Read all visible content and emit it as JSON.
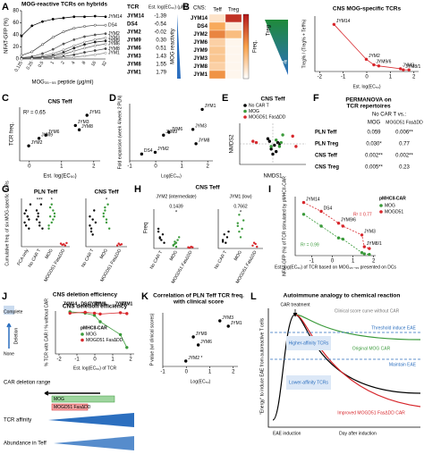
{
  "A": {
    "letter": "A",
    "title": "MOG-reactive TCRs on hybrids",
    "ylabel": "NFAT-GFP (%)",
    "xlabel": "MOG₃₅₋₅₅ peptide (μg/ml)",
    "categories": [
      "0.125",
      "0.25",
      "0.5",
      "1",
      "2",
      "4",
      "8",
      "16",
      "32"
    ],
    "ylim": [
      0,
      80
    ],
    "yticks": [
      0,
      20,
      40,
      60,
      80
    ],
    "series": [
      {
        "name": "JYM14",
        "values": [
          38,
          55,
          62,
          66,
          68,
          70,
          70,
          71,
          70
        ]
      },
      {
        "name": "DS4",
        "values": [
          6,
          12,
          24,
          36,
          45,
          51,
          54,
          56,
          56
        ]
      },
      {
        "name": "JYM2",
        "values": [
          2,
          4,
          9,
          16,
          25,
          32,
          37,
          40,
          42
        ]
      },
      {
        "name": "JYM3",
        "values": [
          1,
          2,
          5,
          9,
          15,
          22,
          28,
          32,
          35
        ]
      },
      {
        "name": "JYM9",
        "values": [
          1,
          2,
          3,
          6,
          11,
          18,
          24,
          28,
          30
        ]
      },
      {
        "name": "JYM6",
        "values": [
          0,
          1,
          2,
          4,
          8,
          13,
          18,
          22,
          25
        ]
      },
      {
        "name": "JYM8",
        "values": [
          0,
          1,
          1,
          2,
          4,
          7,
          11,
          14,
          17
        ]
      },
      {
        "name": "JYM1",
        "values": [
          0,
          0,
          1,
          1,
          2,
          3,
          5,
          7,
          10
        ]
      }
    ],
    "table": {
      "header": [
        "TCR",
        "Est. log(EC₅₀) (μM)"
      ],
      "rows": [
        [
          "JYM14",
          "-1.39"
        ],
        [
          "DS4",
          "-0.54"
        ],
        [
          "JYM2",
          "-0.02"
        ],
        [
          "JYM9",
          "0.30"
        ],
        [
          "JYM6",
          "0.51"
        ],
        [
          "JYM3",
          "1.43"
        ],
        [
          "JYM8",
          "1.55"
        ],
        [
          "JYM1",
          "1.79"
        ]
      ]
    },
    "arrow_label": "MOG reactivity"
  },
  "B": {
    "letter": "B",
    "region": "CNS:",
    "columns": [
      "Teff",
      "Treg"
    ],
    "colorbar_label": "Freq.",
    "rows": [
      "JYM14",
      "DS4",
      "JYM2",
      "JYM6",
      "JYM9",
      "JYM3",
      "JYM8",
      "JYM1"
    ],
    "values": [
      [
        0.15,
        0.9
      ],
      [
        0.45,
        0.1
      ],
      [
        0.6,
        0.35
      ],
      [
        0.25,
        0.05
      ],
      [
        0.3,
        0.05
      ],
      [
        0.3,
        0.05
      ],
      [
        0.25,
        0.05
      ],
      [
        0.55,
        0.05
      ]
    ],
    "gradient_labels": [
      "Treg",
      "Teff"
    ],
    "chart": {
      "title": "CNS MOG-specific TCRs",
      "xlabel": "Est. log(EC₅₀)",
      "ylabel": "Treg% / (Treg% + Teff%)",
      "xlim": [
        -2.2,
        2.2
      ],
      "xticks": [
        -2,
        -1,
        0,
        1,
        2
      ],
      "ylim": [
        0,
        1
      ],
      "series": [
        {
          "color": "#d7262b",
          "line": true,
          "x": [
            -1.39,
            -0.02,
            0.3,
            0.51,
            1.43,
            1.55,
            1.79
          ],
          "y": [
            0.85,
            0.22,
            0.12,
            0.1,
            0.05,
            0.03,
            0.03
          ],
          "labels": [
            "JYM14",
            "JYM2",
            "JYM9/6",
            null,
            "JYM3",
            "JYM8/1",
            null
          ]
        }
      ]
    }
  },
  "C": {
    "letter": "C",
    "title": "CNS Teff",
    "annotation": "R² = 0.65",
    "xlabel": "Est. log(EC₅₀)",
    "ylabel": "TCR freq.",
    "xlim": [
      -0.3,
      2.2
    ],
    "xticks": [
      0,
      1,
      2
    ],
    "ylim": [
      0,
      1
    ],
    "series": [
      {
        "color": "#000",
        "x": [
          -0.02,
          0.3,
          0.51,
          1.43,
          1.55,
          1.79
        ],
        "y": [
          0.28,
          0.42,
          0.48,
          0.66,
          0.58,
          0.85
        ],
        "labels": [
          "JYM2",
          "JYM9",
          "JYM6",
          "JYM3",
          "JYM8",
          "JYM1"
        ]
      }
    ]
  },
  "D": {
    "letter": "D",
    "xlabel": "Log(EC₅₀)",
    "ylabel": "Fold expansion (week 4/week 2 PLN)",
    "xlim": [
      -1,
      2.2
    ],
    "xticks": [
      -1,
      0,
      1,
      2
    ],
    "ylim": [
      0,
      1
    ],
    "series": [
      {
        "color": "#000",
        "x": [
          -0.54,
          -0.02,
          0.3,
          0.51,
          1.43,
          1.55,
          1.79
        ],
        "y": [
          0.12,
          0.15,
          0.45,
          0.5,
          0.55,
          0.3,
          0.9
        ],
        "labels": [
          "DS4",
          "JYM2",
          "JYM9",
          "JYM6",
          "JYM3",
          "JYM8",
          "JYM1"
        ]
      }
    ]
  },
  "E": {
    "letter": "E",
    "title": "CNS Teff",
    "xlabel": "NMDS1",
    "ylabel": "NMDS2",
    "xlim": [
      -1,
      1
    ],
    "ylim": [
      -0.8,
      0.8
    ],
    "series": [
      {
        "name": "No CAR T",
        "color": "#000",
        "x": [
          -0.1,
          0.05,
          0.15,
          -0.05,
          0.1,
          0.2,
          0,
          -0.15
        ],
        "y": [
          0.1,
          -0.05,
          0.05,
          -0.2,
          -0.3,
          0,
          -0.4,
          0.2
        ]
      },
      {
        "name": "MOG",
        "color": "#3a9a3a",
        "x": [
          0.3,
          0.1,
          -0.05,
          0.2,
          0.25
        ],
        "y": [
          0.35,
          0.15,
          -0.1,
          -0.1,
          0.05
        ]
      },
      {
        "name": "MOGD51 FasΔDD",
        "color": "#d7262b",
        "x": [
          -0.6,
          -0.5,
          0.6,
          0.7
        ],
        "y": [
          0.1,
          0.05,
          0.3,
          -0.1
        ]
      }
    ]
  },
  "F": {
    "letter": "F",
    "title_lines": [
      "PERMANOVA on",
      "TCR repertoires"
    ],
    "subtitle": "No CAR T vs.:",
    "columns": [
      "MOG",
      "MOGD51 FasΔDD"
    ],
    "rows": [
      {
        "label": "PLN Teff",
        "cells": [
          "0.059",
          "0.006**"
        ]
      },
      {
        "label": "PLN Treg",
        "cells": [
          "0.030*",
          "0.77"
        ]
      },
      {
        "label": "CNS Teff",
        "cells": [
          "0.002**",
          "0.002**"
        ]
      },
      {
        "label": "CNS Treg",
        "cells": [
          "0.005**",
          "0.23"
        ]
      }
    ]
  },
  "G": {
    "letter": "G",
    "ylabel": "Cumulative freq. of six MOG-specific TCRs",
    "plots": [
      {
        "title": "PLN Teff",
        "ylim": [
          0,
          0.8
        ],
        "categories": [
          "FCA only",
          "No CAR T",
          "MOG",
          "MOGD51 FasΔDD"
        ],
        "colors": [
          "#000",
          "#000",
          "#3a9a3a",
          "#d7262b"
        ],
        "signif": [
          "***",
          "*"
        ],
        "points": [
          [
            0.55,
            0.6,
            0.5,
            0.45,
            0.7,
            0.4,
            0.35,
            0.5,
            0.3
          ],
          [
            0.6,
            0.5,
            0.4,
            0.7,
            0.3,
            0.45,
            0.55,
            0.35
          ],
          [
            0.3,
            0.5,
            0.4,
            0.6,
            0.55,
            0.35,
            0.65,
            0.7,
            0.45,
            0.5
          ],
          [
            0.05,
            0.03,
            0.04,
            0.02,
            0.06
          ]
        ]
      },
      {
        "title": "CNS Teff",
        "ylim": [
          0,
          0.8
        ],
        "categories": [
          "No CAR T",
          "MOG",
          "MOGD51 FasΔDD"
        ],
        "colors": [
          "#000",
          "#3a9a3a",
          "#d7262b"
        ],
        "signif": [
          "*"
        ],
        "points": [
          [
            0.5,
            0.3,
            0.2,
            0.6,
            0.4,
            0.35,
            0.25,
            0.45
          ],
          [
            0.5,
            0.6,
            0.4,
            0.7,
            0.3,
            0.55,
            0.65,
            0.45
          ],
          [
            0.02,
            0.05,
            0.03,
            0.04
          ]
        ]
      }
    ]
  },
  "H": {
    "letter": "H",
    "title": "CNS Teff",
    "ylabel": "Freq",
    "plots": [
      {
        "title": "JYM2 (intermediate)",
        "p": "0.1439",
        "ylim": [
          0,
          0.7
        ],
        "categories": [
          "No CAR T",
          "MOG",
          "MOGD51 FasΔDD"
        ],
        "colors": [
          "#000",
          "#3a9a3a",
          "#d7262b"
        ],
        "signif": [
          "*"
        ],
        "points": [
          [
            0.3,
            0.2,
            0.15,
            0.25,
            0.1,
            0.35,
            0.18
          ],
          [
            0.05,
            0.08,
            0.1,
            0.15,
            0.2,
            0.06,
            0.12,
            0.03
          ],
          [
            0.02,
            0.01,
            0.03,
            0.02
          ]
        ]
      },
      {
        "title": "JYM1 (low)",
        "p": "0.7662",
        "ylim": [
          0,
          0.7
        ],
        "categories": [
          "No CAR T",
          "MOG",
          "MOGD51 FasΔDD"
        ],
        "colors": [
          "#000",
          "#3a9a3a",
          "#d7262b"
        ],
        "signif": [
          "*"
        ],
        "points": [
          [
            0.15,
            0.25,
            0.1,
            0.2,
            0.3,
            0.12
          ],
          [
            0.4,
            0.6,
            0.2,
            0.35,
            0.5,
            0.45,
            0.3
          ],
          [
            0.05,
            0.1,
            0.08,
            0.03
          ]
        ]
      }
    ]
  },
  "I": {
    "letter": "I",
    "legend_title": "pMHCII-CAR",
    "annotations": [
      "R² = 0.77",
      "R² = 0.99"
    ],
    "ylabel": "NFAT-GFP (%) of TCR stimulated by pMHCII-CAR",
    "xlabel": "Est. log(EC₅₀) of TCR based on MOG₃₅₋₅₅ presented on DCs",
    "xlim": [
      -1.8,
      2.1
    ],
    "xticks": [
      -1,
      0,
      1,
      2
    ],
    "ylim": [
      0,
      1
    ],
    "series": [
      {
        "name": "MOG",
        "color": "#3a9a3a",
        "line": true,
        "x": [
          -1.39,
          -0.54,
          0.3,
          0.51,
          1.43,
          1.55,
          1.79
        ],
        "y": [
          0.7,
          0.5,
          0.3,
          0.28,
          0.05,
          0.03,
          0.02
        ]
      },
      {
        "name": "MOGD51",
        "color": "#d7262b",
        "line": true,
        "x": [
          -1.39,
          -0.54,
          0.3,
          0.51,
          1.43,
          1.55,
          1.79
        ],
        "y": [
          0.9,
          0.75,
          0.55,
          0.5,
          0.35,
          0.15,
          0.12
        ],
        "labels": [
          "JYM14",
          "DS4",
          "JYM9/6",
          null,
          "JYM3",
          "JYM8/1",
          null
        ]
      }
    ]
  },
  "J": {
    "letter": "J",
    "title": "CNS deletion efficiency",
    "tcr_labels": [
      "JYM14",
      "DS4",
      "JYM2",
      "JYM9",
      "JYM3",
      "JYM1"
    ],
    "side_labels": [
      "Complete",
      "Deletion",
      "None"
    ],
    "ylabel": "% TCR with CAR / % without CAR",
    "legend_title": "pMHCII-CAR",
    "xlabel": "Est. log(EC₅₀) of TCR",
    "xlim": [
      -2.2,
      2.2
    ],
    "xticks": [
      -2,
      -1,
      0,
      1,
      2
    ],
    "ylim": [
      0,
      1
    ],
    "series": [
      {
        "name": "MOG",
        "color": "#3a9a3a",
        "line": true,
        "x": [
          -1.39,
          -0.54,
          -0.02,
          0.3,
          1.43,
          1.79
        ],
        "y": [
          0.98,
          0.95,
          0.9,
          0.75,
          0.45,
          0.15
        ]
      },
      {
        "name": "MOGD51 FasΔDD",
        "color": "#d7262b",
        "line": true,
        "x": [
          -1.39,
          -0.54,
          -0.02,
          0.3,
          1.43,
          1.79
        ],
        "y": [
          0.95,
          0.97,
          0.95,
          0.93,
          0.96,
          0.94
        ]
      }
    ],
    "diagram": {
      "range": "CAR deletion range",
      "bars": [
        "MOG",
        "MOGD51 FasΔDD"
      ],
      "affinity": "TCR affinity",
      "abundance": "Abundance in Teff"
    }
  },
  "K": {
    "letter": "K",
    "title_lines": [
      "Correlation of PLN Teff TCR freq.",
      "with clinical score"
    ],
    "xlabel": "Log(EC₅₀)",
    "ylabel": "P value (w/ clinical scores)",
    "xlim": [
      -1,
      2.2
    ],
    "xticks": [
      -1,
      0,
      1,
      2
    ],
    "ylim": [
      0,
      1
    ],
    "series": [
      {
        "color": "#000",
        "x": [
          -0.02,
          0.3,
          0.51,
          1.43,
          1.79
        ],
        "y": [
          0.1,
          0.55,
          0.4,
          0.85,
          0.75
        ],
        "labels": [
          "JYM2 *",
          "JYM9",
          "JYM6",
          "JYM3",
          "JYM1"
        ]
      }
    ]
  },
  "L": {
    "letter": "L",
    "title": "Autoimmune analogy to chemical reaction",
    "car": "CAR treatment",
    "clinical": "Clinical score curve without CAR",
    "threshold": "Threshold induce EAE",
    "higher": "Higher-affinity TCRs",
    "original": "Original MOG CAR",
    "maintain": "Maintain EAE",
    "lower": "Lower-affinity TCRs",
    "improved": "Improved MOGD51 FasΔDD CAR",
    "induction": "EAE induction",
    "day": "Day after induction",
    "ylabel": "\"Energy\" to induce EAE from autoreactive T cells"
  }
}
